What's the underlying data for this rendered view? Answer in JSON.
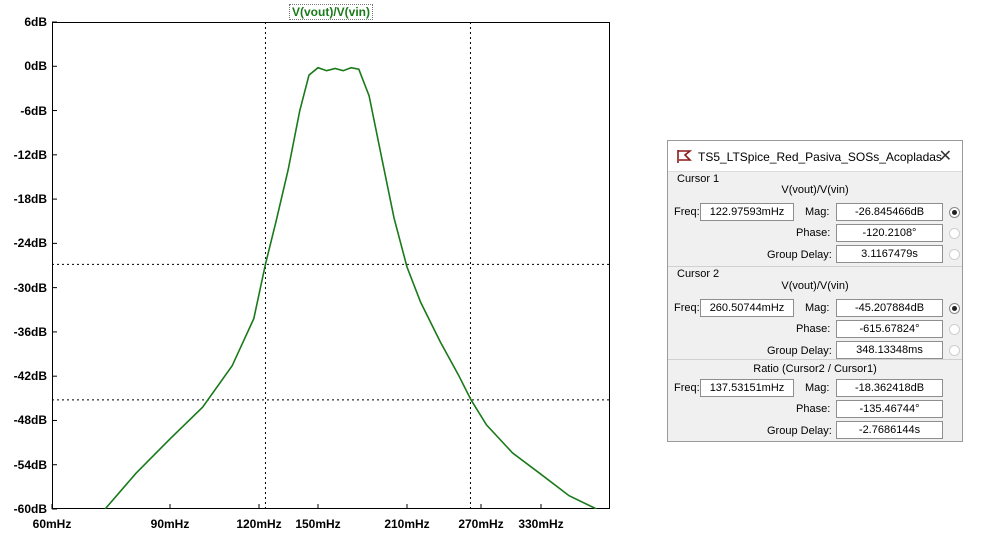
{
  "chart_data": {
    "type": "line",
    "trace_label": "V(vout)/V(vin)",
    "y_ticks": [
      "6dB",
      "0dB",
      "-6dB",
      "-12dB",
      "-18dB",
      "-24dB",
      "-30dB",
      "-36dB",
      "-42dB",
      "-48dB",
      "-54dB",
      "-60dB"
    ],
    "x_ticks": [
      "60mHz",
      "90mHz",
      "120mHz",
      "150mHz",
      "210mHz",
      "270mHz",
      "330mHz"
    ],
    "ylim": [
      -60,
      6
    ],
    "xscale": "log",
    "xlim_mHz": [
      60,
      450
    ],
    "series": [
      {
        "name": "V(vout)/V(vin)",
        "color": "#1a7a1a",
        "x_mHz": [
          72,
          80,
          90,
          100,
          110,
          118,
          123,
          128,
          134,
          140,
          145,
          150,
          155,
          160,
          165,
          170,
          175,
          182,
          190,
          200,
          210,
          220,
          235,
          250,
          261,
          275,
          300,
          330,
          360,
          392
        ],
        "y_dB": [
          -60,
          -55.2,
          -50.5,
          -46.2,
          -40.6,
          -34.2,
          -26.8,
          -21.0,
          -14.0,
          -6.0,
          -1.2,
          -0.2,
          -0.6,
          -0.3,
          -0.6,
          -0.2,
          -0.4,
          -4.0,
          -11.6,
          -20.6,
          -27.2,
          -32.0,
          -37.3,
          -41.8,
          -45.2,
          -48.6,
          -52.4,
          -55.3,
          -58.2,
          -60
        ]
      }
    ],
    "cursor1": {
      "x_mHz": 122.97593,
      "y_dB": -26.845466
    },
    "cursor2": {
      "x_mHz": 260.50744,
      "y_dB": -45.207884
    },
    "grid": false
  },
  "cursor_window": {
    "title": "TS5_LTSpice_Red_Pasiva_SOSs_Acopladas",
    "close_glyph": "✕",
    "cursor1": {
      "section": "Cursor 1",
      "trace": "V(vout)/V(vin)",
      "freq_label": "Freq:",
      "freq": "122.97593mHz",
      "mag_label": "Mag:",
      "mag": "-26.845466dB",
      "phase_label": "Phase:",
      "phase": "-120.2108°",
      "gd_label": "Group Delay:",
      "gd": "3.1167479s"
    },
    "cursor2": {
      "section": "Cursor 2",
      "trace": "V(vout)/V(vin)",
      "freq_label": "Freq:",
      "freq": "260.50744mHz",
      "mag_label": "Mag:",
      "mag": "-45.207884dB",
      "phase_label": "Phase:",
      "phase": "-615.67824°",
      "gd_label": "Group Delay:",
      "gd": "348.13348ms"
    },
    "ratio": {
      "section": "Ratio (Cursor2 / Cursor1)",
      "freq_label": "Freq:",
      "freq": "137.53151mHz",
      "mag_label": "Mag:",
      "mag": "-18.362418dB",
      "phase_label": "Phase:",
      "phase": "-135.46744°",
      "gd_label": "Group Delay:",
      "gd": "-2.7686144s"
    },
    "icons": {
      "app": "ltspice-icon",
      "close": "close-icon"
    }
  }
}
